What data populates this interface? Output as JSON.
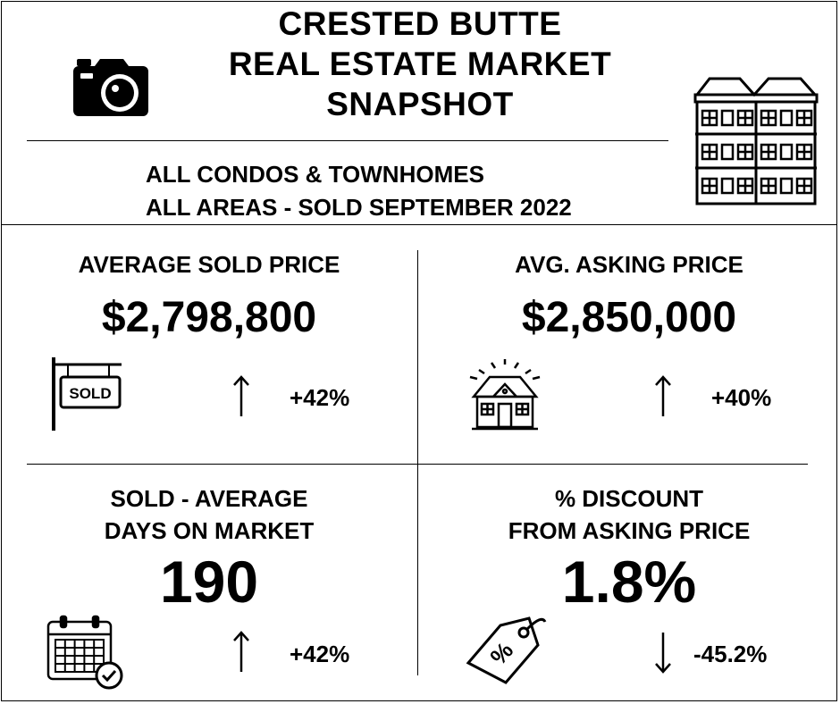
{
  "header": {
    "title_lines": [
      "CRESTED BUTTE",
      "REAL ESTATE MARKET",
      "SNAPSHOT"
    ],
    "subtitle_line1": "ALL CONDOS & TOWNHOMES",
    "subtitle_line2": "ALL AREAS - SOLD SEPTEMBER 2022",
    "left_icon": "camera-icon",
    "right_icon": "townhome-building-icon"
  },
  "stats": {
    "avg_sold_price": {
      "label": "AVERAGE SOLD PRICE",
      "value": "$2,798,800",
      "change": "+42%",
      "direction": "up",
      "icon": "sold-sign-icon"
    },
    "avg_asking_price": {
      "label": "AVG. ASKING PRICE",
      "value": "$2,850,000",
      "change": "+40%",
      "direction": "up",
      "icon": "house-icon"
    },
    "days_on_market": {
      "label_line1": "SOLD - AVERAGE",
      "label_line2": "DAYS ON MARKET",
      "value": "190",
      "change": "+42%",
      "direction": "up",
      "icon": "calendar-check-icon"
    },
    "discount": {
      "label_line1": "% DISCOUNT",
      "label_line2": "FROM ASKING PRICE",
      "value": "1.8%",
      "change": "-45.2%",
      "direction": "down",
      "icon": "price-tag-icon",
      "tag_text": "%"
    }
  },
  "sold_sign_text": "SOLD"
}
